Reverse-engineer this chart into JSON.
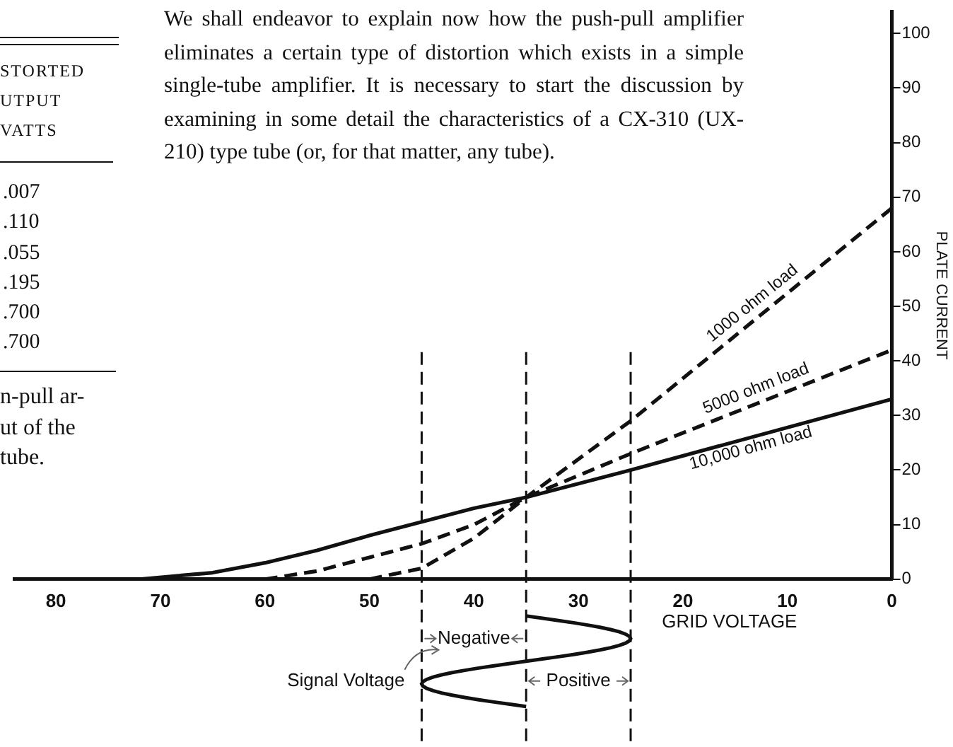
{
  "chart_data": {
    "type": "line",
    "xlabel": "GRID VOLTAGE",
    "ylabel": "PLATE CURRENT",
    "xlim": [
      84,
      0
    ],
    "xticks": [
      80,
      70,
      60,
      50,
      40,
      30,
      20,
      10,
      0
    ],
    "ylim": [
      0,
      104
    ],
    "yticks": [
      0,
      10,
      20,
      30,
      40,
      50,
      60,
      70,
      80,
      90,
      100
    ],
    "marker": "none",
    "series": [
      {
        "name": "1000 ohm load",
        "color": "#111111",
        "line_style": "dashed",
        "x": [
          50,
          45,
          40,
          35,
          25,
          0
        ],
        "values": [
          0,
          2,
          7.5,
          15,
          29,
          68
        ]
      },
      {
        "name": "5000 ohm load",
        "color": "#111111",
        "line_style": "dashed",
        "x": [
          60,
          55,
          50,
          45,
          40,
          35,
          25,
          0
        ],
        "values": [
          0,
          1.5,
          4,
          6.5,
          10,
          15,
          23,
          42
        ]
      },
      {
        "name": "10,000 ohm load",
        "color": "#111111",
        "line_style": "solid",
        "x": [
          72,
          65,
          60,
          55,
          50,
          45,
          40,
          35,
          25,
          0
        ],
        "values": [
          0,
          1.2,
          3,
          5.3,
          8,
          10.5,
          13,
          15,
          20,
          33
        ]
      }
    ],
    "ref_lines": [
      {
        "axis": "x",
        "value": 45,
        "line_style": "dashed"
      },
      {
        "axis": "x",
        "value": 35,
        "line_style": "dashed"
      },
      {
        "axis": "x",
        "value": 25,
        "line_style": "dashed"
      }
    ],
    "annotations": [
      "We shall endeavor to explain now how the push-pull amplifier eliminates a certain type of distortion which exists in a simple single-tube amplifier. It is necessary to start the discussion by examining in some detail the characteristics of a CX-310 (UX-210) type tube (or, for that matter, any tube).",
      "STORTED\nUTPUT\nVATTS",
      ".007\n.110\n.055\n.195\n.700\n.700",
      "n-pull ar-\nut of the\ntube.",
      "Negative",
      "Positive",
      "Signal Voltage"
    ]
  }
}
